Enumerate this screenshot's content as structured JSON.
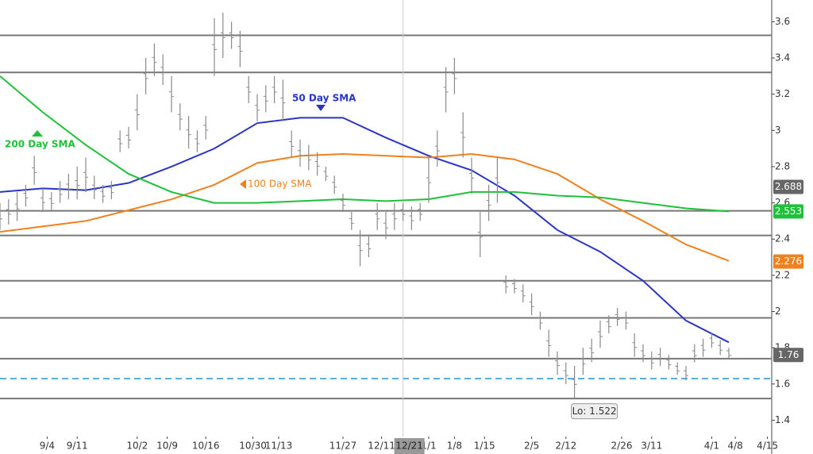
{
  "chart_data": {
    "type": "ohlc",
    "xlim": [
      0,
      180
    ],
    "ylim": [
      1.31,
      3.72
    ],
    "yticks": [
      1.4,
      1.6,
      1.8,
      2,
      2.2,
      2.4,
      2.6,
      2.8,
      3,
      3.2,
      3.4,
      3.6
    ],
    "xticks": [
      {
        "value": 11,
        "label": "9/4"
      },
      {
        "value": 18,
        "label": "9/11"
      },
      {
        "value": 32,
        "label": "10/2"
      },
      {
        "value": 39,
        "label": "10/9"
      },
      {
        "value": 48,
        "label": "10/16"
      },
      {
        "value": 59,
        "label": "10/30"
      },
      {
        "value": 65,
        "label": "11/13"
      },
      {
        "value": 80,
        "label": "11/27"
      },
      {
        "value": 89,
        "label": "12/11"
      },
      {
        "value": 100,
        "label": "1/1"
      },
      {
        "value": 106,
        "label": "1/8"
      },
      {
        "value": 113,
        "label": "1/15"
      },
      {
        "value": 124,
        "label": "2/5"
      },
      {
        "value": 132,
        "label": "2/12"
      },
      {
        "value": 145,
        "label": "2/26"
      },
      {
        "value": 152,
        "label": "3/11"
      },
      {
        "value": 166,
        "label": "4/1"
      },
      {
        "value": 171.5,
        "label": "4/8"
      },
      {
        "value": 179,
        "label": "4/15"
      }
    ],
    "crosshair": {
      "value": 94,
      "label": "12/21"
    },
    "bar_color": "#8a8a8a",
    "bars": {
      "x": [
        0,
        2,
        4,
        6,
        8,
        10,
        12,
        14,
        16,
        18,
        20,
        22,
        24,
        26,
        28,
        30,
        32,
        34,
        36,
        38,
        40,
        42,
        44,
        46,
        48,
        50,
        52,
        54,
        56,
        58,
        60,
        62,
        64,
        66,
        68,
        70,
        72,
        74,
        76,
        78,
        80,
        82,
        84,
        86,
        88,
        90,
        92,
        94,
        96,
        98,
        100,
        102,
        104,
        106,
        108,
        110,
        112,
        114,
        116,
        118,
        120,
        122,
        124,
        126,
        128,
        130,
        132,
        134,
        136,
        138,
        140,
        142,
        144,
        146,
        148,
        150,
        152,
        154,
        156,
        158,
        160,
        162,
        164,
        166,
        168,
        170
      ],
      "high": [
        2.6,
        2.62,
        2.66,
        2.7,
        2.86,
        2.68,
        2.66,
        2.72,
        2.76,
        2.8,
        2.85,
        2.75,
        2.7,
        2.72,
        3.0,
        3.02,
        3.2,
        3.4,
        3.48,
        3.42,
        3.3,
        3.15,
        3.08,
        3.0,
        3.08,
        3.62,
        3.65,
        3.6,
        3.55,
        3.3,
        3.2,
        3.25,
        3.3,
        3.28,
        3.0,
        2.95,
        2.92,
        2.88,
        2.8,
        2.75,
        2.65,
        2.55,
        2.45,
        2.42,
        2.6,
        2.55,
        2.6,
        2.6,
        2.58,
        2.6,
        2.85,
        3.0,
        3.35,
        3.4,
        3.1,
        2.85,
        2.55,
        2.7,
        2.85,
        2.2,
        2.18,
        2.15,
        2.1,
        2.0,
        1.9,
        1.78,
        1.72,
        1.7,
        1.8,
        1.85,
        1.95,
        1.98,
        2.02,
        2.0,
        1.88,
        1.82,
        1.78,
        1.8,
        1.76,
        1.72,
        1.7,
        1.82,
        1.85,
        1.88,
        1.84,
        1.8
      ],
      "low": [
        2.45,
        2.48,
        2.5,
        2.58,
        2.7,
        2.55,
        2.56,
        2.6,
        2.62,
        2.62,
        2.66,
        2.62,
        2.6,
        2.62,
        2.88,
        2.9,
        3.0,
        3.2,
        3.3,
        3.25,
        3.1,
        3.0,
        2.9,
        2.88,
        2.95,
        3.3,
        3.4,
        3.45,
        3.35,
        3.15,
        3.05,
        3.1,
        3.15,
        3.05,
        2.85,
        2.8,
        2.78,
        2.75,
        2.72,
        2.65,
        2.55,
        2.45,
        2.25,
        2.3,
        2.45,
        2.4,
        2.45,
        2.5,
        2.45,
        2.5,
        2.6,
        2.8,
        3.1,
        3.2,
        2.85,
        2.65,
        2.3,
        2.5,
        2.6,
        2.1,
        2.1,
        2.05,
        1.98,
        1.9,
        1.75,
        1.65,
        1.6,
        1.522,
        1.65,
        1.72,
        1.8,
        1.88,
        1.92,
        1.9,
        1.75,
        1.72,
        1.68,
        1.7,
        1.68,
        1.65,
        1.62,
        1.72,
        1.75,
        1.8,
        1.76,
        1.74
      ]
    },
    "series": [
      {
        "name": "50 Day SMA",
        "color": "#2a35c8",
        "x": [
          0,
          10,
          20,
          30,
          40,
          50,
          60,
          70,
          80,
          90,
          100,
          110,
          120,
          130,
          140,
          150,
          160,
          170
        ],
        "values": [
          2.66,
          2.68,
          2.67,
          2.71,
          2.8,
          2.9,
          3.04,
          3.07,
          3.07,
          2.96,
          2.86,
          2.78,
          2.64,
          2.45,
          2.33,
          2.17,
          1.95,
          1.83
        ]
      },
      {
        "name": "100 Day SMA",
        "color": "#f0811e",
        "x": [
          0,
          10,
          20,
          30,
          40,
          50,
          60,
          70,
          80,
          90,
          100,
          110,
          120,
          130,
          140,
          150,
          160,
          170
        ],
        "values": [
          2.44,
          2.47,
          2.5,
          2.56,
          2.62,
          2.7,
          2.82,
          2.86,
          2.87,
          2.86,
          2.85,
          2.87,
          2.84,
          2.76,
          2.62,
          2.5,
          2.37,
          2.28
        ]
      },
      {
        "name": "200 Day SMA",
        "color": "#1fc03a",
        "x": [
          0,
          10,
          20,
          30,
          40,
          50,
          60,
          70,
          80,
          90,
          100,
          110,
          120,
          130,
          140,
          150,
          160,
          170
        ],
        "values": [
          3.3,
          3.1,
          2.92,
          2.76,
          2.66,
          2.6,
          2.6,
          2.61,
          2.62,
          2.61,
          2.62,
          2.66,
          2.66,
          2.64,
          2.63,
          2.6,
          2.57,
          2.553
        ]
      }
    ],
    "hlines": [
      3.525,
      3.32,
      2.556,
      2.42,
      2.17,
      1.965,
      1.74,
      1.52
    ],
    "dashed_line": {
      "value": 1.63,
      "color": "#5aaee0"
    },
    "price_labels": [
      {
        "value": 2.688,
        "color": "#666666"
      },
      {
        "value": 2.553,
        "color": "#1fc03a"
      },
      {
        "value": 2.276,
        "color": "#f0811e"
      },
      {
        "value": 1.76,
        "color": "#666666"
      }
    ],
    "low_label": "Lo: 1.522"
  }
}
